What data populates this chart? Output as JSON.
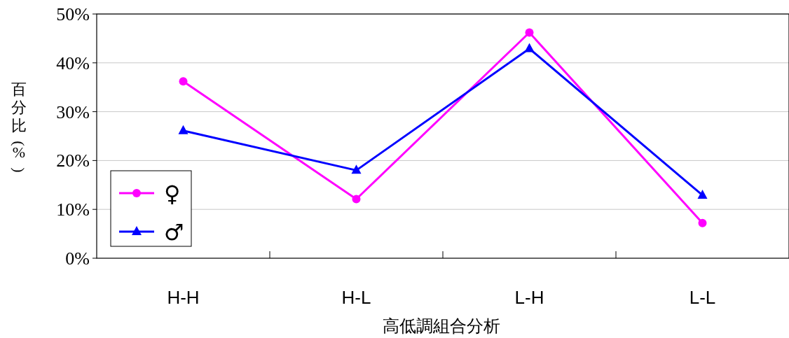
{
  "chart_data": {
    "type": "line",
    "xlabel": "高低調組合分析",
    "ylabel": "百分比(%)",
    "categories": [
      "H-H",
      "H-L",
      "L-H",
      "L-L"
    ],
    "series": [
      {
        "name": "♀",
        "color": "#ff00ff",
        "marker": "circle",
        "values": [
          36.2,
          12.1,
          46.2,
          7.2
        ]
      },
      {
        "name": "♂",
        "color": "#0000ff",
        "marker": "triangle",
        "values": [
          26.1,
          18.0,
          42.9,
          12.9
        ]
      }
    ],
    "ylim": [
      0,
      50
    ],
    "yticks": [
      {
        "value": 0,
        "label": "0%"
      },
      {
        "value": 10,
        "label": "10%"
      },
      {
        "value": 20,
        "label": "20%"
      },
      {
        "value": 30,
        "label": "30%"
      },
      {
        "value": 40,
        "label": "40%"
      },
      {
        "value": 50,
        "label": "50%"
      }
    ],
    "grid": "y",
    "legend": "bottom left"
  }
}
